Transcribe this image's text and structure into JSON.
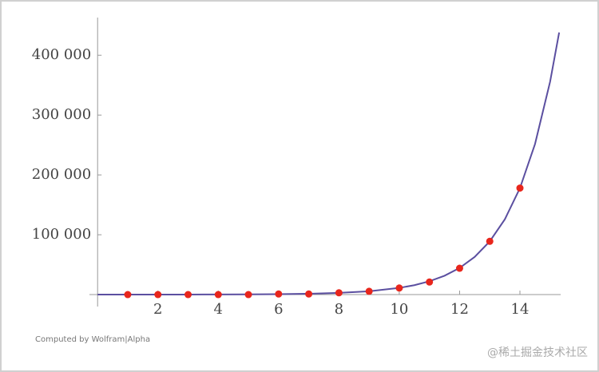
{
  "chart_data": {
    "type": "line",
    "xlim": [
      -0.27,
      15.35
    ],
    "ylim": [
      -20000,
      463000
    ],
    "xticks": [
      2,
      4,
      6,
      8,
      10,
      12,
      14
    ],
    "yticks": [
      {
        "value": 100000,
        "label": "100 000"
      },
      {
        "value": 200000,
        "label": "200 000"
      },
      {
        "value": 300000,
        "label": "300 000"
      },
      {
        "value": 400000,
        "label": "400 000"
      }
    ],
    "series": [
      {
        "type": "line",
        "color": "#5b4fa0",
        "x": [
          0,
          1,
          2,
          3,
          4,
          5,
          6,
          7,
          8,
          9,
          10,
          10.5,
          11,
          11.5,
          12,
          12.5,
          13,
          13.5,
          14,
          14.5,
          15,
          15.3
        ],
        "values": [
          11,
          22,
          43,
          87,
          174,
          348,
          695,
          1390,
          2780,
          5560,
          11121,
          15727,
          22241,
          31454,
          44483,
          62908,
          88965,
          125816,
          177930,
          251632,
          355860,
          438100
        ]
      },
      {
        "type": "scatter",
        "color": "#e8261c",
        "x": [
          1,
          2,
          3,
          4,
          5,
          6,
          7,
          8,
          9,
          10,
          11,
          12,
          13,
          14
        ],
        "values": [
          0,
          0,
          0,
          0,
          0,
          1000,
          1000,
          3000,
          5500,
          11000,
          21000,
          44000,
          89000,
          178000
        ]
      }
    ],
    "credit": "Computed by Wolfram|Alpha",
    "watermark": "@稀土掘金技术社区"
  }
}
